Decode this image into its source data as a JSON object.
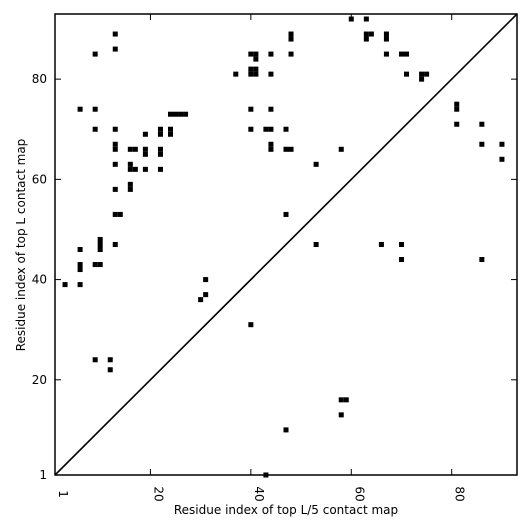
{
  "chart_data": {
    "type": "scatter",
    "title": "",
    "xlabel": "Residue index of top L/5 contact map",
    "ylabel": "Residue index of top L contact map",
    "xlim": [
      1,
      93
    ],
    "ylim": [
      1,
      93
    ],
    "xticks": [
      1,
      20,
      40,
      60,
      80
    ],
    "yticks": [
      1,
      20,
      40,
      60,
      80
    ],
    "xtick_labels": [
      "1",
      "20",
      "40",
      "60",
      "80"
    ],
    "ytick_labels": [
      "1",
      "20",
      "40",
      "60",
      "80"
    ],
    "grid": false,
    "diagonal": true,
    "marker": "square",
    "marker_color": "#000000",
    "points": [
      [
        3,
        39
      ],
      [
        6,
        39
      ],
      [
        6,
        42
      ],
      [
        6,
        43
      ],
      [
        6,
        46
      ],
      [
        6,
        74
      ],
      [
        9,
        24
      ],
      [
        9,
        43
      ],
      [
        9,
        70
      ],
      [
        9,
        74
      ],
      [
        9,
        85
      ],
      [
        10,
        43
      ],
      [
        10,
        46
      ],
      [
        10,
        47
      ],
      [
        10,
        48
      ],
      [
        12,
        22
      ],
      [
        12,
        24
      ],
      [
        13,
        47
      ],
      [
        13,
        53
      ],
      [
        13,
        58
      ],
      [
        13,
        63
      ],
      [
        13,
        66
      ],
      [
        13,
        67
      ],
      [
        13,
        70
      ],
      [
        13,
        86
      ],
      [
        13,
        89
      ],
      [
        14,
        53
      ],
      [
        16,
        58
      ],
      [
        16,
        59
      ],
      [
        16,
        62
      ],
      [
        16,
        63
      ],
      [
        16,
        66
      ],
      [
        17,
        62
      ],
      [
        17,
        66
      ],
      [
        19,
        62
      ],
      [
        19,
        65
      ],
      [
        19,
        66
      ],
      [
        19,
        69
      ],
      [
        22,
        62
      ],
      [
        22,
        65
      ],
      [
        22,
        66
      ],
      [
        22,
        69
      ],
      [
        22,
        70
      ],
      [
        24,
        69
      ],
      [
        24,
        70
      ],
      [
        24,
        73
      ],
      [
        25,
        73
      ],
      [
        26,
        73
      ],
      [
        27,
        73
      ],
      [
        30,
        36
      ],
      [
        31,
        37
      ],
      [
        31,
        40
      ],
      [
        37,
        81
      ],
      [
        40,
        31
      ],
      [
        40,
        70
      ],
      [
        40,
        74
      ],
      [
        40,
        81
      ],
      [
        40,
        82
      ],
      [
        40,
        85
      ],
      [
        41,
        81
      ],
      [
        41,
        82
      ],
      [
        41,
        84
      ],
      [
        41,
        85
      ],
      [
        43,
        1
      ],
      [
        43,
        70
      ],
      [
        44,
        66
      ],
      [
        44,
        67
      ],
      [
        44,
        70
      ],
      [
        44,
        74
      ],
      [
        44,
        81
      ],
      [
        44,
        85
      ],
      [
        47,
        10
      ],
      [
        47,
        53
      ],
      [
        47,
        66
      ],
      [
        47,
        70
      ],
      [
        48,
        66
      ],
      [
        48,
        85
      ],
      [
        48,
        88
      ],
      [
        48,
        89
      ],
      [
        53,
        47
      ],
      [
        53,
        63
      ],
      [
        58,
        13
      ],
      [
        58,
        16
      ],
      [
        58,
        66
      ],
      [
        59,
        16
      ],
      [
        60,
        92
      ],
      [
        63,
        88
      ],
      [
        63,
        89
      ],
      [
        63,
        92
      ],
      [
        64,
        89
      ],
      [
        66,
        47
      ],
      [
        67,
        85
      ],
      [
        67,
        88
      ],
      [
        67,
        89
      ],
      [
        70,
        44
      ],
      [
        70,
        47
      ],
      [
        70,
        85
      ],
      [
        71,
        81
      ],
      [
        71,
        85
      ],
      [
        74,
        80
      ],
      [
        74,
        81
      ],
      [
        75,
        81
      ],
      [
        81,
        71
      ],
      [
        81,
        74
      ],
      [
        81,
        75
      ],
      [
        86,
        44
      ],
      [
        86,
        67
      ],
      [
        86,
        71
      ],
      [
        90,
        64
      ],
      [
        90,
        67
      ]
    ]
  }
}
